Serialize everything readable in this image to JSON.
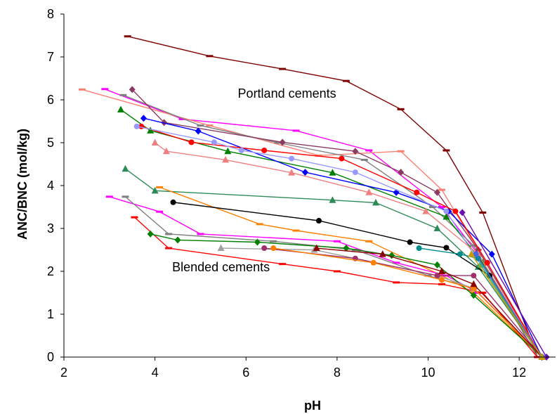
{
  "chart_data": {
    "type": "line",
    "title": "",
    "xlabel": "pH",
    "ylabel": "ANC/BNC (mol/kg)",
    "xlim": [
      2,
      12.8
    ],
    "ylim": [
      0,
      8
    ],
    "xticks": [
      2,
      4,
      6,
      8,
      10,
      12
    ],
    "yticks": [
      0,
      1,
      2,
      3,
      4,
      5,
      6,
      7,
      8
    ],
    "grid": false,
    "legend": "none",
    "annotations": [
      {
        "text": "Portland cements",
        "x": 6.9,
        "y": 6.05
      },
      {
        "text": "Blended cements",
        "x": 5.45,
        "y": 2.0
      }
    ],
    "series": [
      {
        "color": "#7f0000",
        "marker": "dash",
        "x": [
          3.4,
          5.2,
          6.8,
          8.2,
          9.4,
          10.4,
          11.2,
          12.4
        ],
        "y": [
          7.48,
          7.02,
          6.72,
          6.44,
          5.78,
          4.82,
          3.37,
          0.0
        ]
      },
      {
        "color": "#ff00ff",
        "marker": "dash",
        "x": [
          2.9,
          4.6,
          7.1,
          8.7,
          10.3,
          11.1,
          12.4
        ],
        "y": [
          6.25,
          5.55,
          5.28,
          4.82,
          3.5,
          2.4,
          0.0
        ]
      },
      {
        "color": "#fa8072",
        "marker": "dash",
        "x": [
          2.4,
          5.2,
          7.6,
          9.4,
          10.3,
          11.1,
          12.5
        ],
        "y": [
          6.24,
          5.4,
          4.7,
          4.8,
          3.9,
          2.5,
          0.0
        ]
      },
      {
        "color": "#808080",
        "marker": "dash",
        "x": [
          3.3,
          5.0,
          6.7,
          8.6,
          10.1,
          11.0,
          12.4
        ],
        "y": [
          6.11,
          5.4,
          5.0,
          4.6,
          3.5,
          2.6,
          0.0
        ]
      },
      {
        "color": "#8b3a62",
        "marker": "diamond",
        "x": [
          3.5,
          4.2,
          6.8,
          8.4,
          9.4,
          10.2,
          11.1,
          12.5
        ],
        "y": [
          6.24,
          5.47,
          5.01,
          4.8,
          4.31,
          3.84,
          2.5,
          0.0
        ]
      },
      {
        "color": "#008000",
        "marker": "triangle",
        "x": [
          3.25,
          3.9,
          5.6,
          7.9,
          10.4,
          11.2,
          12.5
        ],
        "y": [
          5.77,
          5.28,
          4.8,
          4.3,
          3.27,
          2.2,
          0.0
        ]
      },
      {
        "color": "#0000ff",
        "marker": "diamond",
        "x": [
          3.75,
          4.95,
          7.3,
          9.3,
          10.45,
          11.4,
          12.5
        ],
        "y": [
          5.57,
          5.27,
          4.31,
          3.84,
          3.4,
          2.4,
          0.0
        ]
      },
      {
        "color": "#ff0000",
        "marker": "circle",
        "x": [
          3.7,
          4.8,
          6.4,
          8.1,
          9.75,
          10.6,
          11.3,
          12.5
        ],
        "y": [
          5.38,
          5.01,
          4.82,
          4.63,
          3.84,
          3.4,
          2.2,
          0.0
        ]
      },
      {
        "color": "#9999ff",
        "marker": "circle",
        "x": [
          3.6,
          5.3,
          5.9,
          7.0,
          8.4,
          10.4,
          11.0,
          12.5
        ],
        "y": [
          5.38,
          5.01,
          4.82,
          4.63,
          4.31,
          3.4,
          2.4,
          0.0
        ]
      },
      {
        "color": "#6a0dad",
        "marker": "diamond",
        "x": [
          10.75,
          12.6
        ],
        "y": [
          3.37,
          0.0
        ]
      },
      {
        "color": "#f08080",
        "marker": "triangle",
        "x": [
          4.0,
          4.25,
          5.55,
          7.0,
          8.7,
          9.95,
          11.1,
          12.5
        ],
        "y": [
          5.0,
          4.8,
          4.6,
          4.3,
          3.84,
          3.4,
          2.4,
          0.0
        ]
      },
      {
        "color": "#2e8b57",
        "marker": "triangle",
        "x": [
          3.35,
          4.0,
          7.9,
          8.85,
          10.2,
          11.1,
          12.5
        ],
        "y": [
          4.39,
          3.88,
          3.66,
          3.6,
          3.0,
          2.1,
          0.0
        ]
      },
      {
        "color": "#ff8000",
        "marker": "dash",
        "x": [
          4.1,
          6.3,
          7.1,
          8.7,
          10.3,
          11.0,
          12.5
        ],
        "y": [
          3.96,
          3.1,
          2.95,
          2.7,
          1.9,
          1.5,
          0.0
        ]
      },
      {
        "color": "#000000",
        "marker": "circle",
        "x": [
          4.4,
          7.6,
          9.6,
          10.4,
          11.35,
          12.5
        ],
        "y": [
          3.61,
          3.18,
          2.68,
          2.55,
          1.9,
          0.0
        ]
      },
      {
        "color": "#ff00ff",
        "marker": "dash",
        "x": [
          3.0,
          4.1,
          5.0,
          8.0,
          9.3,
          10.4,
          11.1,
          12.5
        ],
        "y": [
          3.74,
          3.39,
          2.87,
          2.7,
          2.2,
          1.9,
          1.5,
          0.0
        ]
      },
      {
        "color": "#808080",
        "marker": "dash",
        "x": [
          3.35,
          4.3,
          6.6,
          8.4,
          10.0,
          11.0,
          12.5
        ],
        "y": [
          3.74,
          2.87,
          2.7,
          2.5,
          1.9,
          1.6,
          0.0
        ]
      },
      {
        "color": "#ff0000",
        "marker": "dash",
        "x": [
          3.55,
          4.3,
          6.8,
          8.0,
          9.3,
          10.3,
          11.2,
          12.4
        ],
        "y": [
          3.26,
          2.54,
          2.17,
          2.0,
          1.74,
          1.7,
          1.5,
          0.0
        ]
      },
      {
        "color": "#008000",
        "marker": "diamond",
        "x": [
          3.9,
          4.5,
          6.25,
          8.2,
          9.2,
          10.2,
          11.0,
          12.5
        ],
        "y": [
          2.87,
          2.73,
          2.68,
          2.54,
          2.37,
          2.15,
          1.44,
          0.0
        ]
      },
      {
        "color": "#a0a0a0",
        "marker": "triangle",
        "x": [
          5.45,
          7.5,
          10.2,
          11.0,
          12.5
        ],
        "y": [
          2.54,
          2.5,
          1.9,
          1.6,
          0.0
        ]
      },
      {
        "color": "#a0306a",
        "marker": "circle",
        "x": [
          6.4,
          8.4,
          10.2,
          11.0,
          12.5
        ],
        "y": [
          2.54,
          2.3,
          1.9,
          1.9,
          0.0
        ]
      },
      {
        "color": "#ff8000",
        "marker": "circle",
        "x": [
          6.6,
          8.8,
          10.3,
          11.0,
          12.5
        ],
        "y": [
          2.54,
          2.2,
          1.8,
          1.6,
          0.0
        ]
      },
      {
        "color": "#8b0000",
        "marker": "triangle",
        "x": [
          7.55,
          9.0,
          10.3,
          11.0,
          12.5
        ],
        "y": [
          2.54,
          2.4,
          2.0,
          1.7,
          0.0
        ]
      },
      {
        "color": "#008b8b",
        "marker": "circle",
        "x": [
          9.8,
          10.7,
          11.1,
          12.5
        ],
        "y": [
          2.54,
          2.4,
          2.3,
          0.0
        ]
      },
      {
        "color": "#3cb371",
        "marker": "triangle",
        "x": [
          11.15,
          12.5
        ],
        "y": [
          2.15,
          0.0
        ]
      },
      {
        "color": "#4169e1",
        "marker": "circle",
        "x": [
          11.05,
          12.5
        ],
        "y": [
          2.4,
          0.0
        ]
      },
      {
        "color": "#cc9900",
        "marker": "triangle",
        "x": [
          10.95,
          12.5
        ],
        "y": [
          2.4,
          0.0
        ]
      }
    ]
  }
}
